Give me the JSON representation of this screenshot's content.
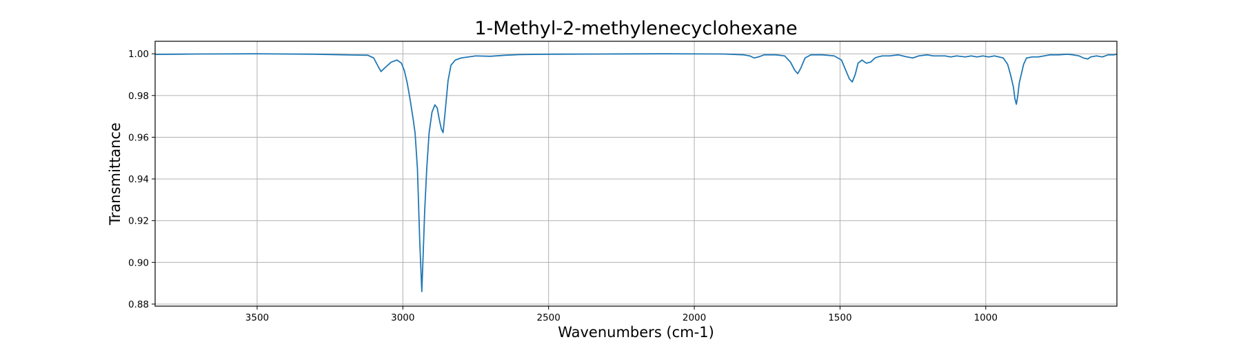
{
  "chart_data": {
    "type": "line",
    "title": "1-Methyl-2-methylenecyclohexane",
    "xlabel": "Wavenumbers (cm-1)",
    "ylabel": "Transmittance",
    "xlim": [
      3850,
      550
    ],
    "ylim": [
      0.879,
      1.006
    ],
    "x_inverted": true,
    "grid": true,
    "xticks": [
      3500,
      3000,
      2500,
      2000,
      1500,
      1000
    ],
    "xtick_labels": [
      "3500",
      "3000",
      "2500",
      "2000",
      "1500",
      "1000"
    ],
    "yticks": [
      0.88,
      0.9,
      0.92,
      0.94,
      0.96,
      0.98,
      1.0
    ],
    "ytick_labels": [
      "0.88",
      "0.90",
      "0.92",
      "0.94",
      "0.96",
      "0.98",
      "1.00"
    ],
    "line_color": "#1f77b4",
    "series": [
      {
        "name": "1-Methyl-2-methylenecyclohexane",
        "x": [
          3850,
          3700,
          3500,
          3300,
          3200,
          3120,
          3100,
          3085,
          3075,
          3060,
          3040,
          3020,
          3005,
          2995,
          2985,
          2975,
          2965,
          2958,
          2950,
          2942,
          2935,
          2930,
          2925,
          2918,
          2910,
          2900,
          2890,
          2882,
          2875,
          2868,
          2862,
          2855,
          2845,
          2835,
          2820,
          2800,
          2750,
          2700,
          2650,
          2600,
          2500,
          2300,
          2100,
          1900,
          1830,
          1810,
          1795,
          1780,
          1760,
          1720,
          1690,
          1670,
          1655,
          1645,
          1635,
          1620,
          1600,
          1560,
          1520,
          1495,
          1480,
          1468,
          1458,
          1448,
          1438,
          1425,
          1410,
          1395,
          1380,
          1370,
          1355,
          1330,
          1300,
          1270,
          1250,
          1230,
          1200,
          1180,
          1160,
          1140,
          1120,
          1100,
          1070,
          1050,
          1030,
          1010,
          990,
          970,
          940,
          925,
          915,
          905,
          900,
          895,
          890,
          885,
          880,
          870,
          860,
          840,
          820,
          800,
          780,
          750,
          720,
          700,
          680,
          665,
          650,
          640,
          620,
          600,
          580,
          560,
          550
        ],
        "y": [
          0.9997,
          0.9999,
          1.0,
          0.9998,
          0.9995,
          0.9993,
          0.998,
          0.994,
          0.9915,
          0.9935,
          0.996,
          0.997,
          0.9955,
          0.992,
          0.986,
          0.978,
          0.969,
          0.962,
          0.945,
          0.91,
          0.886,
          0.905,
          0.925,
          0.945,
          0.962,
          0.972,
          0.9755,
          0.974,
          0.9685,
          0.964,
          0.9622,
          0.972,
          0.987,
          0.9945,
          0.997,
          0.998,
          0.999,
          0.9988,
          0.9993,
          0.9996,
          0.9998,
          0.9999,
          1.0,
          0.9999,
          0.9995,
          0.999,
          0.998,
          0.9985,
          0.9995,
          0.9995,
          0.999,
          0.996,
          0.992,
          0.9905,
          0.993,
          0.998,
          0.9995,
          0.9995,
          0.999,
          0.997,
          0.992,
          0.988,
          0.9865,
          0.99,
          0.9955,
          0.997,
          0.9955,
          0.996,
          0.998,
          0.9985,
          0.999,
          0.999,
          0.9995,
          0.9985,
          0.998,
          0.999,
          0.9995,
          0.999,
          0.999,
          0.999,
          0.9985,
          0.999,
          0.9985,
          0.999,
          0.9985,
          0.999,
          0.9985,
          0.999,
          0.998,
          0.995,
          0.99,
          0.984,
          0.9785,
          0.9758,
          0.98,
          0.986,
          0.989,
          0.995,
          0.998,
          0.9985,
          0.9985,
          0.999,
          0.9995,
          0.9995,
          0.9998,
          0.9995,
          0.999,
          0.998,
          0.9975,
          0.9985,
          0.999,
          0.9985,
          0.9995,
          0.9995,
          0.9998
        ]
      }
    ]
  }
}
